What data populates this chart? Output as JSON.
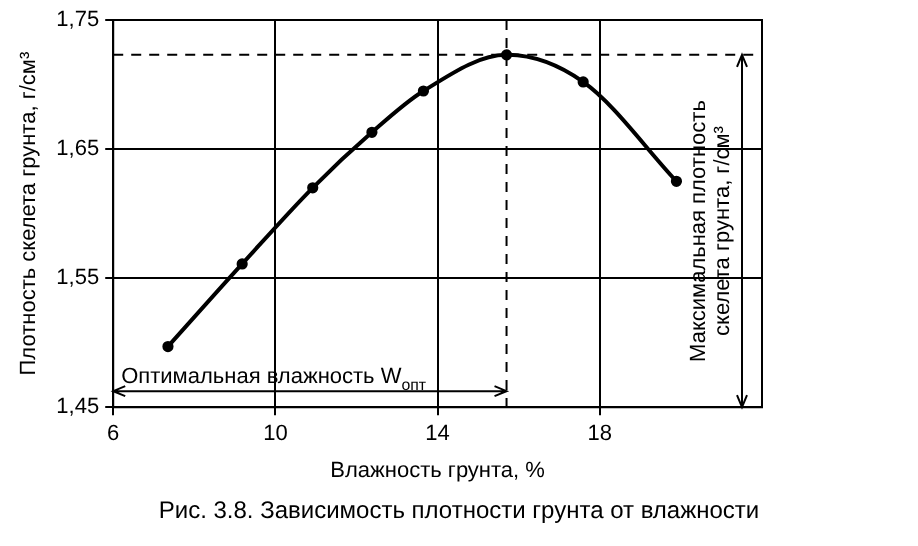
{
  "chart_data": {
    "type": "line",
    "xlabel": "Влажность грунта, %",
    "ylabel": "Плотность скелета грунта, г/см³",
    "x": [
      7.35,
      9.18,
      10.92,
      12.38,
      13.65,
      15.7,
      17.59,
      19.89
    ],
    "series": [
      {
        "color": "#000000",
        "values": [
          1.497,
          1.561,
          1.62,
          1.663,
          1.695,
          1.723,
          1.702,
          1.625
        ]
      }
    ],
    "xlim": [
      6,
      22
    ],
    "xticks": [
      6,
      10,
      14,
      18
    ],
    "ylim": [
      1.45,
      1.75
    ],
    "yticks": [
      {
        "value": 1.45,
        "label": "1,45"
      },
      {
        "value": 1.55,
        "label": "1,55"
      },
      {
        "value": 1.65,
        "label": "1,65"
      },
      {
        "value": 1.75,
        "label": "1,75"
      }
    ],
    "grid": true,
    "legend": false,
    "marker": "circle",
    "line_style": "solid",
    "ref_lines": [
      {
        "axis": "y",
        "value": 1.723,
        "line_style": "dashed"
      },
      {
        "axis": "x",
        "value": 15.7,
        "line_style": "dashed"
      }
    ],
    "annotations": [
      "Оптимальная влажность W$_{опт}$",
      "Максимальная плотность скелета грунта, г/см³",
      "Рис. 3.8. Зависимость плотности грунта от влажности"
    ]
  }
}
